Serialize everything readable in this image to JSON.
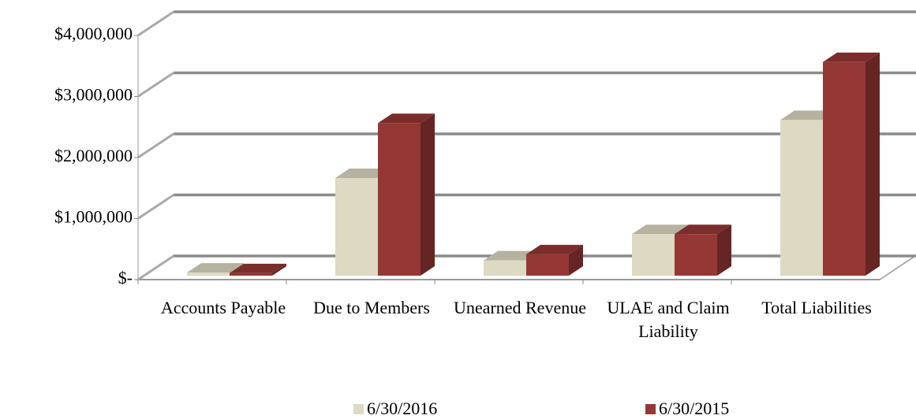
{
  "chart_data": {
    "type": "bar3d",
    "categories": [
      "Accounts Payable",
      "Due to Members",
      "Unearned Revenue",
      "ULAE and Claim Liability",
      "Total Liabilities"
    ],
    "series": [
      {
        "name": "6/30/2016",
        "color": "#ddd9c3",
        "values": [
          50000,
          1600000,
          250000,
          680000,
          2550000
        ]
      },
      {
        "name": "6/30/2015",
        "color": "#953735",
        "values": [
          40000,
          2500000,
          350000,
          680000,
          3500000
        ]
      }
    ],
    "ylim": [
      0,
      4000000
    ],
    "yticks": [
      {
        "value": 0,
        "label": "$-"
      },
      {
        "value": 1000000,
        "label": "$1,000,000"
      },
      {
        "value": 2000000,
        "label": "$2,000,000"
      },
      {
        "value": 3000000,
        "label": "$3,000,000"
      },
      {
        "value": 4000000,
        "label": "$4,000,000"
      }
    ],
    "grid": true,
    "legend": "bottom"
  }
}
